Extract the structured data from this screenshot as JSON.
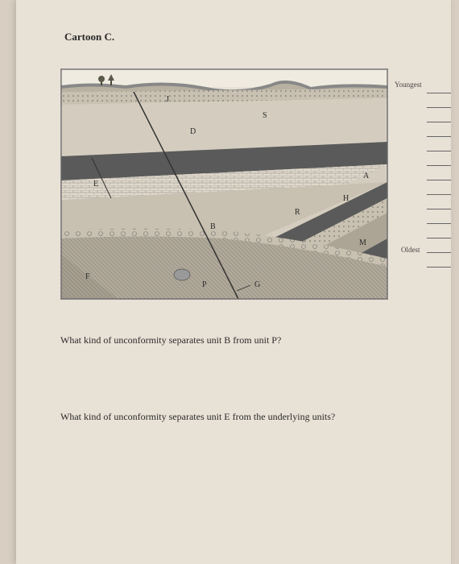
{
  "title": "Cartoon C.",
  "labels": {
    "youngest": "Youngest",
    "oldest": "Oldest"
  },
  "answer_lines": 13,
  "questions": {
    "q1": "What kind of unconformity separates unit B from unit P?",
    "q2": "What kind of unconformity separates unit E from the underlying units?"
  },
  "diagram": {
    "unit_labels": [
      "J",
      "S",
      "D",
      "E",
      "A",
      "H",
      "R",
      "B",
      "M",
      "F",
      "P",
      "G"
    ],
    "colors": {
      "sky": "#ffffff",
      "soil_top": "#b8b0a0",
      "layer_light": "#d4cdbf",
      "layer_dark": "#5a5a5a",
      "layer_mid": "#aca595",
      "layer_dotted": "#c8c0b0",
      "basement": "#b0a898",
      "border": "#333333",
      "text": "#2a2a2a"
    }
  }
}
